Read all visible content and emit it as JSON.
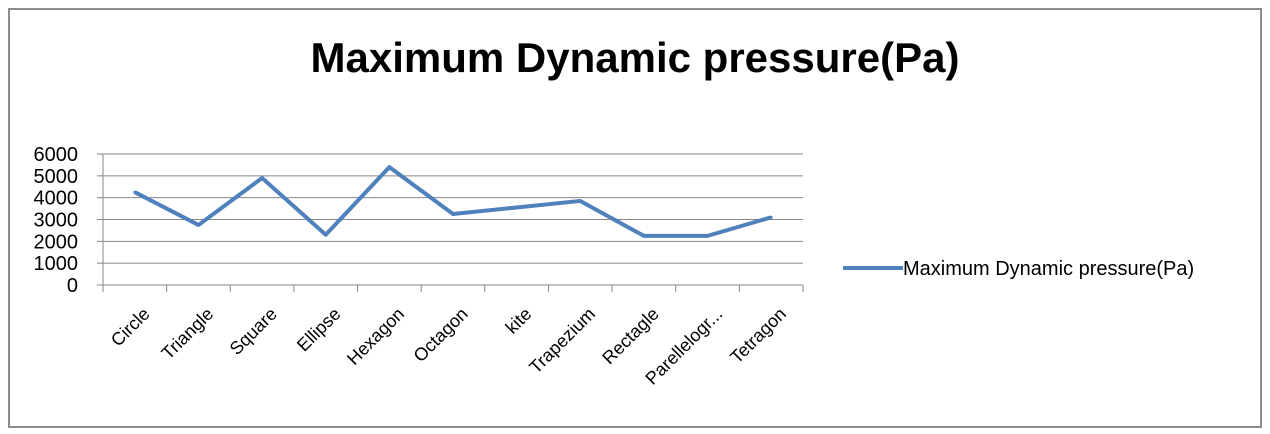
{
  "chart_data": {
    "type": "line",
    "title": "Maximum Dynamic pressure(Pa)",
    "xlabel": "",
    "ylabel": "",
    "categories": [
      "Circle",
      "Triangle",
      "Square",
      "Ellipse",
      "Hexagon",
      "Octagon",
      "kite",
      "Trapezium",
      "Rectagle",
      "Parellelogr...",
      "Tetragon"
    ],
    "series": [
      {
        "name": "Maximum Dynamic pressure(Pa)",
        "values": [
          4250,
          2750,
          4900,
          2300,
          5400,
          3250,
          3550,
          3850,
          2250,
          2250,
          3100
        ]
      }
    ],
    "ylim": [
      0,
      6000
    ],
    "yticks": [
      "0",
      "1000",
      "2000",
      "3000",
      "4000",
      "5000",
      "6000"
    ],
    "grid": true,
    "legend": "right",
    "colors": {
      "series": "#4f81bd",
      "grid": "#868686",
      "axis": "#868686"
    }
  }
}
